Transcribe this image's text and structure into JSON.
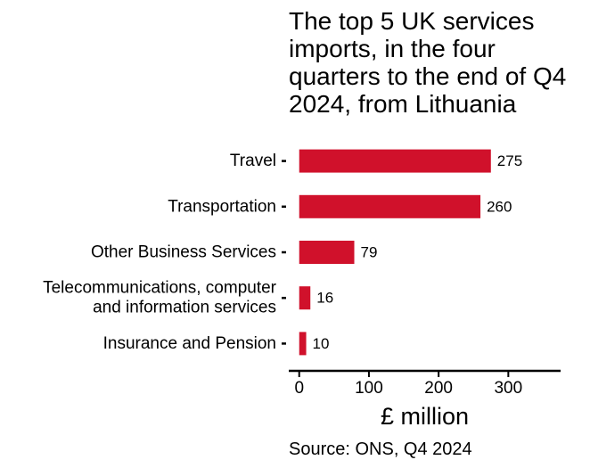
{
  "chart_data": {
    "type": "bar",
    "orientation": "horizontal",
    "title": "The top 5 UK services imports, in the four quarters to the end of Q4 2024, from Lithuania",
    "categories": [
      [
        "Travel"
      ],
      [
        "Transportation"
      ],
      [
        "Other Business Services"
      ],
      [
        "Telecommunications, computer",
        "and information services"
      ],
      [
        "Insurance and Pension"
      ]
    ],
    "values": [
      275,
      260,
      79,
      16,
      10
    ],
    "value_labels": [
      "275",
      "260",
      "79",
      "16",
      "10"
    ],
    "xlabel": "£ million",
    "xlim": [
      -15,
      375
    ],
    "xticks": [
      0,
      100,
      200,
      300
    ],
    "xtick_labels": [
      "0",
      "100",
      "200",
      "300"
    ],
    "bar_color": "#d0112b",
    "grid": false,
    "source": "Source: ONS, Q4 2024"
  }
}
